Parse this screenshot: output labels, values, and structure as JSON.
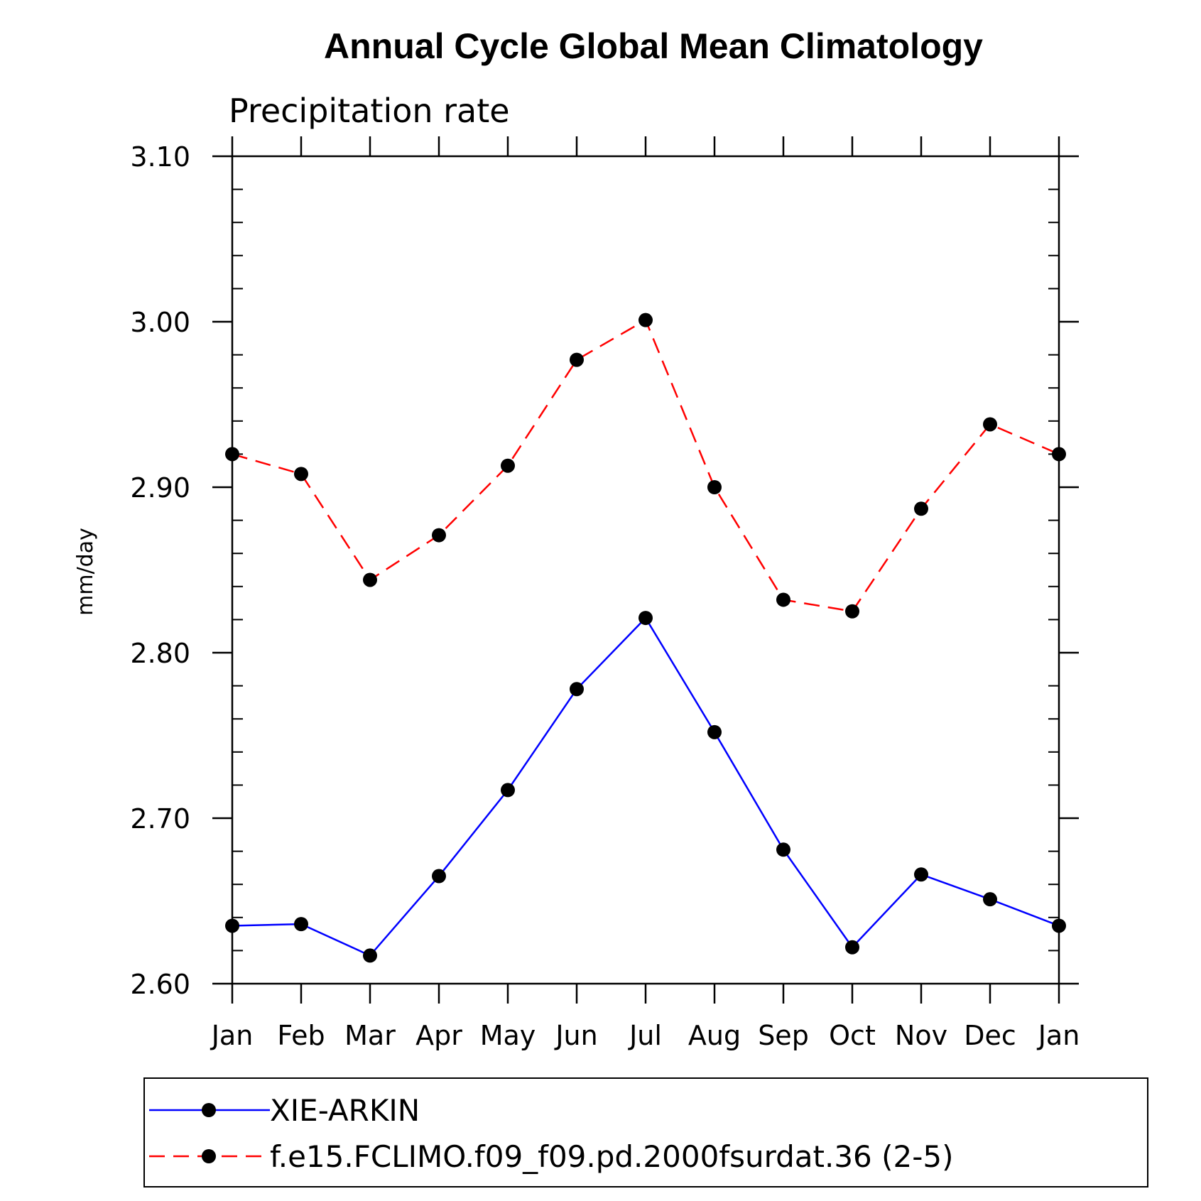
{
  "chart_data": {
    "type": "line",
    "title": "Annual Cycle Global Mean Climatology",
    "subtitle": "Precipitation rate",
    "xlabel": "",
    "ylabel": "mm/day",
    "categories": [
      "Jan",
      "Feb",
      "Mar",
      "Apr",
      "May",
      "Jun",
      "Jul",
      "Aug",
      "Sep",
      "Oct",
      "Nov",
      "Dec",
      "Jan"
    ],
    "ylim": [
      2.6,
      3.1
    ],
    "y_ticks": [
      "2.60",
      "2.70",
      "2.80",
      "2.90",
      "3.00",
      "3.10"
    ],
    "y_tick_values": [
      2.6,
      2.7,
      2.8,
      2.9,
      3.0,
      3.1
    ],
    "grid": false,
    "legend_position": "bottom",
    "series": [
      {
        "name": "XIE-ARKIN",
        "color": "#0000ff",
        "style": "solid",
        "values": [
          2.635,
          2.636,
          2.617,
          2.665,
          2.717,
          2.778,
          2.821,
          2.752,
          2.681,
          2.622,
          2.666,
          2.651,
          2.635
        ]
      },
      {
        "name": "f.e15.FCLIMO.f09_f09.pd.2000fsurdat.36 (2-5)",
        "color": "#ff0000",
        "style": "dashed",
        "values": [
          2.92,
          2.908,
          2.844,
          2.871,
          2.913,
          2.977,
          3.001,
          2.9,
          2.832,
          2.825,
          2.887,
          2.938,
          2.92
        ]
      }
    ]
  }
}
